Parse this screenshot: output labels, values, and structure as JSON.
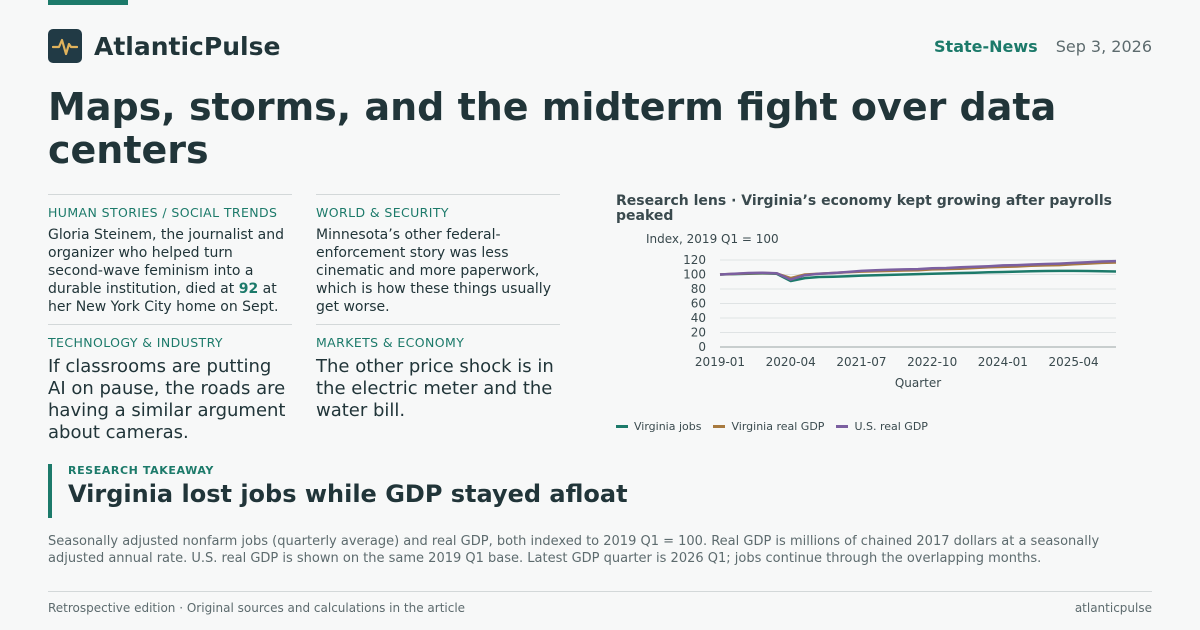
{
  "brand": {
    "name": "AtlanticPulse",
    "logo_icon": "pulse-icon"
  },
  "header": {
    "section": "State-News",
    "date": "Sep 3, 2026"
  },
  "headline": "Maps, storms, and the midterm fight over data centers",
  "stories": [
    {
      "kicker": "HUMAN STORIES / SOCIAL TRENDS",
      "text_before": "Gloria Steinem, the journalist and organizer who helped turn second-wave feminism into a durable institution, died at ",
      "highlight": "92",
      "text_after": " at her New York City home on Sept."
    },
    {
      "kicker": "WORLD & SECURITY",
      "text": "Minnesota’s other federal-enforcement story was less cinematic and more paperwork, which is how these things usually get worse."
    },
    {
      "kicker": "TECHNOLOGY & INDUSTRY",
      "text": "If classrooms are putting AI on pause, the roads are having a similar argument about cameras."
    },
    {
      "kicker": "MARKETS & ECONOMY",
      "text": "The other price shock is in the electric meter and the water bill."
    }
  ],
  "chart_data": {
    "type": "line",
    "title": "Research lens · Virginia’s economy kept growing after payrolls peaked",
    "ylabel": "Index, 2019 Q1 = 100",
    "xlabel": "Quarter",
    "ylim": [
      0,
      120
    ],
    "yticks": [
      0,
      20,
      40,
      60,
      80,
      100,
      120
    ],
    "xticks": [
      "2019-01",
      "2020-04",
      "2021-07",
      "2022-10",
      "2024-01",
      "2025-04"
    ],
    "x": [
      "2019-01",
      "2019-04",
      "2019-07",
      "2019-10",
      "2020-01",
      "2020-04",
      "2020-07",
      "2020-10",
      "2021-01",
      "2021-04",
      "2021-07",
      "2021-10",
      "2022-01",
      "2022-04",
      "2022-07",
      "2022-10",
      "2023-01",
      "2023-04",
      "2023-07",
      "2023-10",
      "2024-01",
      "2024-04",
      "2024-07",
      "2024-10",
      "2025-01",
      "2025-04",
      "2025-07",
      "2025-10",
      "2026-01"
    ],
    "grid": true,
    "legend_position": "bottom",
    "series": [
      {
        "name": "Virginia jobs",
        "color": "#1c7a6a",
        "values": [
          100,
          100.5,
          101,
          101.5,
          101,
          91,
          95,
          96.5,
          97,
          97.5,
          98.5,
          99,
          99.5,
          100,
          100.5,
          101,
          101.5,
          102,
          102.5,
          103,
          103.5,
          104,
          104.5,
          104.8,
          105,
          105,
          104.8,
          104.5,
          104.2
        ]
      },
      {
        "name": "Virginia real GDP",
        "color": "#a87a3f",
        "values": [
          100,
          100.8,
          101.5,
          102,
          101.5,
          95,
          100,
          101,
          102,
          103,
          104,
          104.5,
          105,
          105.5,
          106,
          107,
          107.5,
          108,
          109,
          110,
          110.5,
          111,
          112,
          112.5,
          113,
          114,
          115,
          116,
          116.5
        ]
      },
      {
        "name": "U.S. real GDP",
        "color": "#7b5fa0",
        "values": [
          100,
          101,
          102,
          102.5,
          101.8,
          93,
          99,
          101,
          102,
          103.5,
          105,
          106,
          106.5,
          107,
          107.5,
          108.5,
          109,
          110,
          110.8,
          111.5,
          112.5,
          113,
          113.8,
          114.5,
          115,
          116,
          117,
          118,
          118.5
        ]
      }
    ]
  },
  "takeaway": {
    "label": "RESEARCH TAKEAWAY",
    "title": "Virginia lost jobs while GDP stayed afloat"
  },
  "note": "Seasonally adjusted nonfarm jobs (quarterly average) and real GDP, both indexed to 2019 Q1 = 100. Real GDP is millions of chained 2017 dollars at a seasonally adjusted annual rate. U.S. real GDP is shown on the same 2019 Q1 base. Latest GDP quarter is 2026 Q1; jobs continue through the overlapping months.",
  "footer": {
    "left": "Retrospective edition · Original sources and calculations in the article",
    "right": "atlanticpulse"
  }
}
